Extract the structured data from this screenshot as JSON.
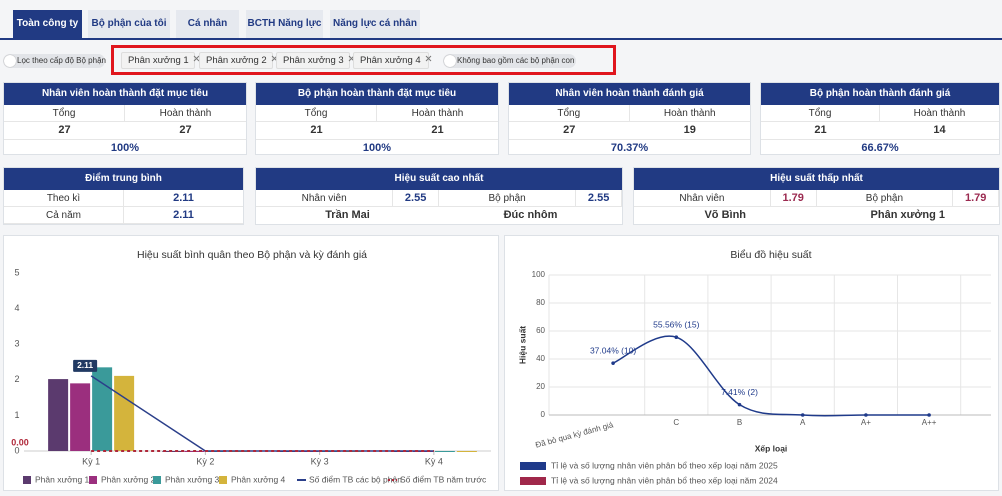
{
  "tabs": [
    "Toàn công ty",
    "Bộ phận của tôi",
    "Cá nhân",
    "BCTH Năng lực",
    "Năng lực cá nhân"
  ],
  "filter": {
    "level_toggle": "Lọc theo cấp độ Bộ phận",
    "departments": [
      "Phân xưởng 1",
      "Phân xưởng 2",
      "Phân xưởng 3",
      "Phân xưởng 4"
    ],
    "exclude_toggle": "Không bao gồm các bộ phận con"
  },
  "summary_cards": [
    {
      "title": "Nhân viên hoàn thành đặt mục tiêu",
      "headers": [
        "Tổng",
        "Hoàn thành"
      ],
      "values": [
        27,
        27
      ],
      "rate": "100%"
    },
    {
      "title": "Bộ phận hoàn thành đặt mục tiêu",
      "headers": [
        "Tổng",
        "Hoàn thành"
      ],
      "values": [
        21,
        21
      ],
      "rate": "100%"
    },
    {
      "title": "Nhân viên hoàn thành đánh giá",
      "headers": [
        "Tổng",
        "Hoàn thành"
      ],
      "values": [
        27,
        19
      ],
      "rate": "70.37%"
    },
    {
      "title": "Bộ phận hoàn thành đánh giá",
      "headers": [
        "Tổng",
        "Hoàn thành"
      ],
      "values": [
        21,
        14
      ],
      "rate": "66.67%"
    }
  ],
  "average_card": {
    "title": "Điểm trung bình",
    "rows": [
      [
        "Theo kì",
        2.11
      ],
      [
        "Cả năm",
        2.11
      ]
    ]
  },
  "extreme_cards": [
    {
      "title": "Hiệu suất cao nhất",
      "labels": [
        "Nhân viên",
        "Bộ phận"
      ],
      "values": [
        2.55,
        2.55
      ],
      "names": [
        "Trần Mai",
        "Đúc nhôm"
      ]
    },
    {
      "title": "Hiệu suất thấp nhất",
      "labels": [
        "Nhân viên",
        "Bộ phận"
      ],
      "values": [
        1.79,
        1.79
      ],
      "names": [
        "Võ Bình",
        "Phân xưởng 1"
      ]
    }
  ],
  "chart_data": [
    {
      "type": "bar",
      "title": "Hiệu suất bình quân theo Bộ phận và kỳ đánh giá",
      "categories": [
        "Kỳ 1",
        "Kỳ 2",
        "Kỳ 3",
        "Kỳ 4"
      ],
      "series": [
        {
          "name": "Phân xưởng 1",
          "color": "#5b3a6e",
          "values": [
            2.02,
            0,
            0,
            0
          ]
        },
        {
          "name": "Phân xưởng 2",
          "color": "#9b2f7e",
          "values": [
            1.9,
            0,
            0,
            0
          ]
        },
        {
          "name": "Phân xưởng 3",
          "color": "#3a9a9a",
          "values": [
            2.35,
            0,
            0,
            0
          ]
        },
        {
          "name": "Phân xưởng 4",
          "color": "#d4b43c",
          "values": [
            2.11,
            0,
            0,
            0
          ]
        },
        {
          "name": "Số điểm TB các bộ phận",
          "color": "#2b3f8a",
          "type": "line",
          "values": [
            2.11,
            0,
            0,
            0
          ]
        },
        {
          "name": "Số điểm TB năm trước",
          "color": "#b0283a",
          "type": "line",
          "dashed": true,
          "values": [
            0,
            0,
            0,
            0
          ],
          "value_labels": [
            "0.00",
            null,
            null,
            null
          ]
        }
      ],
      "ylim": [
        0,
        5
      ],
      "yticks": [
        0,
        1,
        2,
        3,
        4,
        5
      ],
      "grid": false,
      "legend": "bottom"
    },
    {
      "type": "line",
      "title": "Biểu đồ hiệu suất",
      "x_label": "Xếp loại",
      "y_label": "Hiệu suất",
      "categories": [
        "Đã bỏ qua kỳ đánh giá",
        "C",
        "B",
        "A",
        "A+",
        "A++"
      ],
      "series": [
        {
          "name": "Tỉ lệ và số lượng nhân viên phân bổ theo xếp loại năm 2025",
          "color": "#1f3a8a",
          "values": [
            37.04,
            55.56,
            7.41,
            0,
            0,
            0
          ],
          "value_labels": [
            "37.04% (10)",
            "55.56% (15)",
            "7.41% (2)",
            null,
            null,
            null
          ]
        },
        {
          "name": "Tỉ lệ và số lượng nhân viên phân bổ theo xếp loại năm 2024",
          "color": "#a0284a",
          "values": [
            null,
            null,
            null,
            null,
            null,
            null
          ]
        }
      ],
      "ylim": [
        0,
        100
      ],
      "yticks": [
        0,
        20,
        40,
        60,
        80,
        100
      ],
      "grid": true,
      "smooth": true,
      "legend": "bottom"
    }
  ]
}
